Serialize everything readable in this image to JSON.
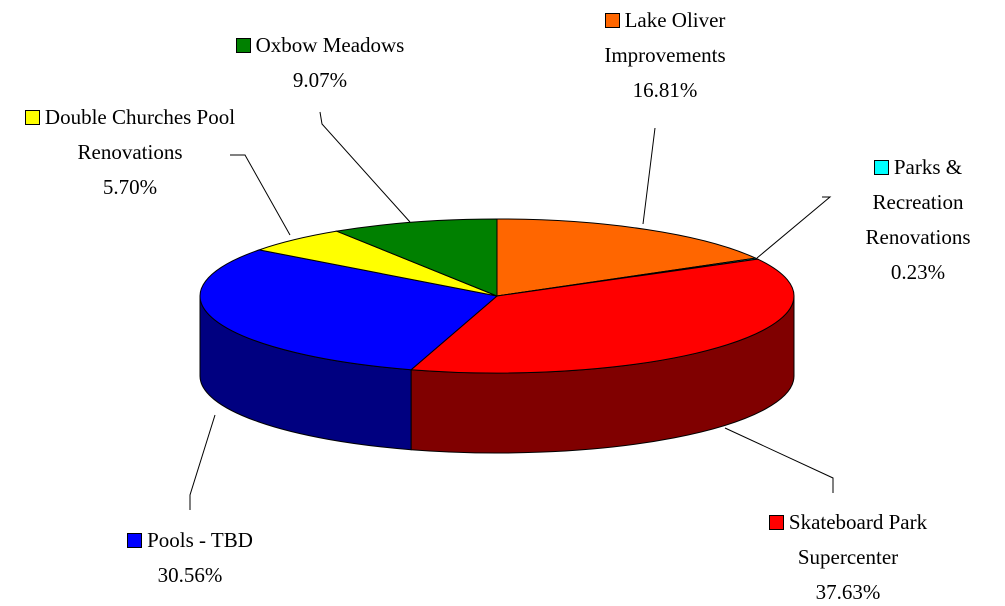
{
  "chart_data": {
    "type": "pie",
    "categories": [
      "Lake Oliver Improvements",
      "Parks & Recreation Renovations",
      "Skateboard Park Supercenter",
      "Pools - TBD",
      "Double Churches Pool Renovations",
      "Oxbow Meadows"
    ],
    "values": [
      16.81,
      0.23,
      37.63,
      30.56,
      5.7,
      9.07
    ],
    "value_labels": [
      "16.81%",
      "0.23%",
      "37.63%",
      "30.56%",
      "5.70%",
      "9.07%"
    ],
    "colors": [
      "#ff6600",
      "#00ffff",
      "#ff0000",
      "#0000ff",
      "#ffff00",
      "#008000"
    ]
  }
}
